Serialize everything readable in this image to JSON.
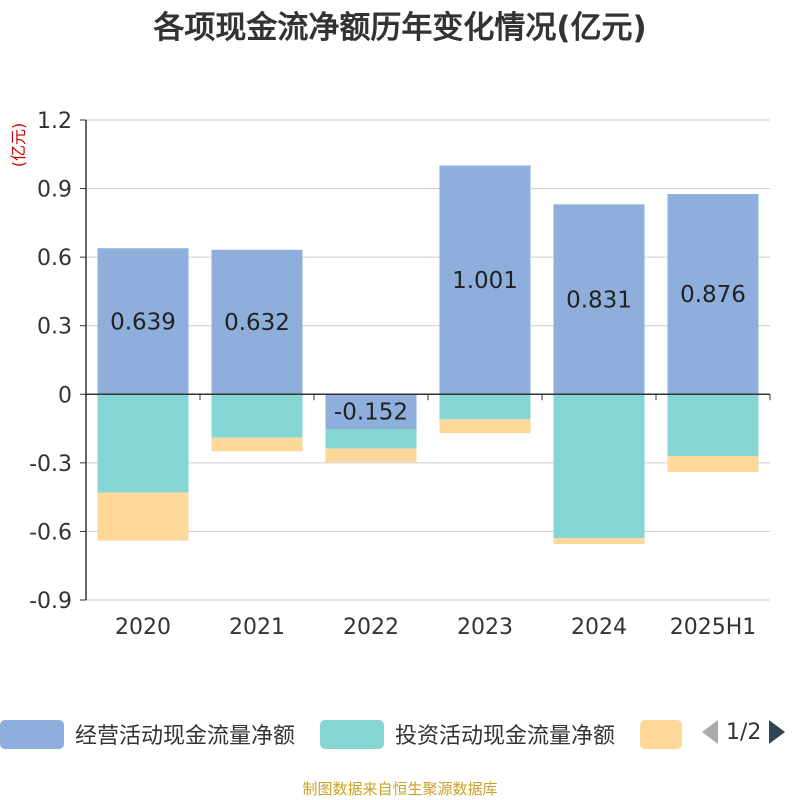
{
  "title": "各项现金流净额历年变化情况(亿元)",
  "footer": "制图数据来自恒生聚源数据库",
  "legend_page": "1/2",
  "chart_data": {
    "type": "bar",
    "stacked": true,
    "unit_label": "(亿元)",
    "categories": [
      "2020",
      "2021",
      "2022",
      "2023",
      "2024",
      "2025H1"
    ],
    "ylim": [
      -0.9,
      1.2
    ],
    "yticks": [
      "1.2",
      "0.9",
      "0.6",
      "0.3",
      "0",
      "-0.3",
      "-0.6",
      "-0.9"
    ],
    "ytick_values": [
      1.2,
      0.9,
      0.6,
      0.3,
      0,
      -0.3,
      -0.6,
      -0.9
    ],
    "grid": true,
    "legend_position": "bottom",
    "series": [
      {
        "name": "经营活动现金流量净额",
        "color": "#8eaedb",
        "values": [
          0.639,
          0.632,
          -0.152,
          1.001,
          0.831,
          0.876
        ],
        "labels": [
          "0.639",
          "0.632",
          "-0.152",
          "1.001",
          "0.831",
          "0.876"
        ]
      },
      {
        "name": "投资活动现金流量净额",
        "color": "#86d6d6",
        "values": [
          -0.43,
          -0.19,
          -0.085,
          -0.11,
          -0.63,
          -0.27
        ]
      },
      {
        "name": "",
        "color": "#fdd89a",
        "values": [
          -0.21,
          -0.06,
          -0.06,
          -0.06,
          -0.025,
          -0.07
        ]
      }
    ]
  }
}
